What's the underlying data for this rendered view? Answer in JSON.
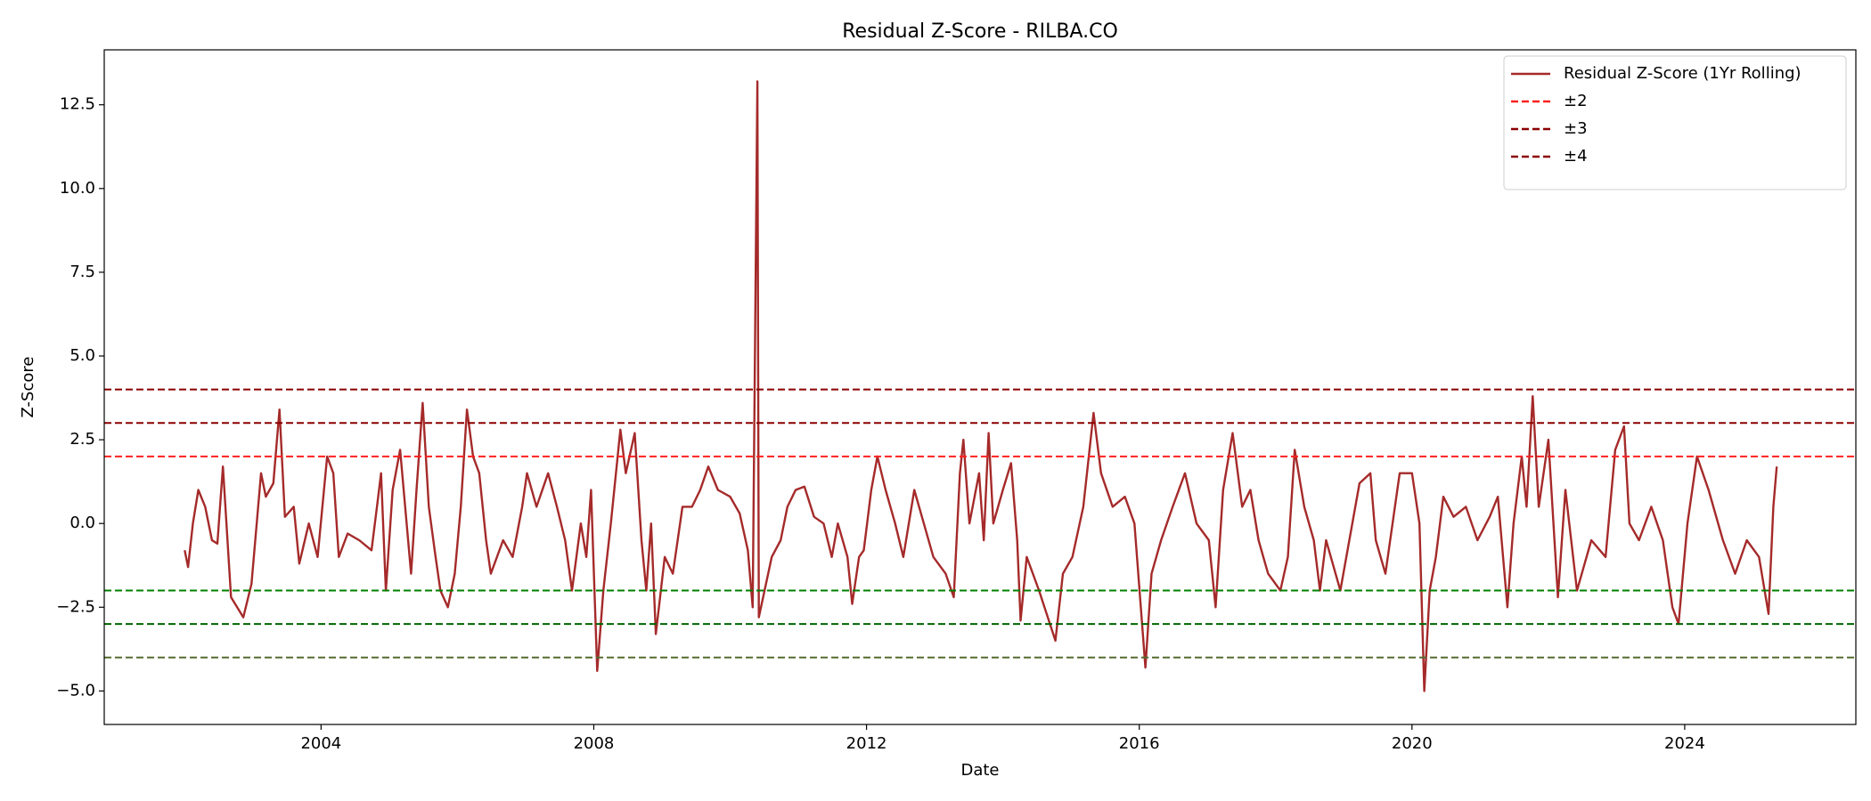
{
  "chart_data": {
    "type": "line",
    "title": "Residual Z-Score - RILBA.CO",
    "x_label": "Date",
    "y_label": "Z-Score",
    "xlim": [
      2000.82,
      2026.51
    ],
    "ylim": [
      -6.0,
      14.14
    ],
    "xticks": [
      2004,
      2008,
      2012,
      2016,
      2020,
      2024
    ],
    "yticks": [
      {
        "value": -5,
        "label": "−5.0"
      },
      {
        "value": -2.5,
        "label": "−2.5"
      },
      {
        "value": 0,
        "label": "0.0"
      },
      {
        "value": 2.5,
        "label": "2.5"
      },
      {
        "value": 5,
        "label": "5.0"
      },
      {
        "value": 7.5,
        "label": "7.5"
      },
      {
        "value": 10,
        "label": "10.0"
      },
      {
        "value": 12.5,
        "label": "12.5"
      }
    ],
    "legend": "upper right",
    "x": [
      2002.0,
      2002.05,
      2002.12,
      2002.2,
      2002.3,
      2002.4,
      2002.48,
      2002.56,
      2002.68,
      2002.86,
      2002.98,
      2003.12,
      2003.19,
      2003.3,
      2003.39,
      2003.47,
      2003.6,
      2003.68,
      2003.82,
      2003.95,
      2004.09,
      2004.18,
      2004.26,
      2004.39,
      2004.56,
      2004.74,
      2004.82,
      2004.88,
      2004.95,
      2005.05,
      2005.16,
      2005.32,
      2005.4,
      2005.49,
      2005.58,
      2005.68,
      2005.75,
      2005.86,
      2005.96,
      2006.05,
      2006.14,
      2006.23,
      2006.32,
      2006.42,
      2006.49,
      2006.67,
      2006.81,
      2006.95,
      2007.02,
      2007.16,
      2007.33,
      2007.46,
      2007.58,
      2007.68,
      2007.81,
      2007.89,
      2007.96,
      2008.05,
      2008.14,
      2008.25,
      2008.39,
      2008.47,
      2008.6,
      2008.7,
      2008.77,
      2008.84,
      2008.91,
      2009.04,
      2009.16,
      2009.3,
      2009.44,
      2009.56,
      2009.68,
      2009.82,
      2010.0,
      2010.14,
      2010.26,
      2010.33,
      2010.4,
      2010.42,
      2010.61,
      2010.74,
      2010.84,
      2010.96,
      2011.09,
      2011.23,
      2011.37,
      2011.49,
      2011.58,
      2011.72,
      2011.79,
      2011.89,
      2011.96,
      2012.07,
      2012.16,
      2012.28,
      2012.42,
      2012.54,
      2012.7,
      2012.84,
      2012.98,
      2013.16,
      2013.28,
      2013.37,
      2013.42,
      2013.51,
      2013.65,
      2013.72,
      2013.79,
      2013.86,
      2014.0,
      2014.12,
      2014.21,
      2014.26,
      2014.35,
      2014.53,
      2014.77,
      2014.88,
      2015.02,
      2015.18,
      2015.33,
      2015.44,
      2015.61,
      2015.79,
      2015.93,
      2016.09,
      2016.18,
      2016.32,
      2016.49,
      2016.67,
      2016.84,
      2017.02,
      2017.12,
      2017.23,
      2017.37,
      2017.51,
      2017.63,
      2017.75,
      2017.89,
      2018.07,
      2018.18,
      2018.28,
      2018.42,
      2018.56,
      2018.65,
      2018.74,
      2018.95,
      2019.23,
      2019.39,
      2019.47,
      2019.61,
      2019.82,
      2020.0,
      2020.11,
      2020.18,
      2020.26,
      2020.35,
      2020.46,
      2020.61,
      2020.79,
      2020.96,
      2021.14,
      2021.26,
      2021.4,
      2021.49,
      2021.61,
      2021.68,
      2021.77,
      2021.86,
      2022.0,
      2022.14,
      2022.25,
      2022.42,
      2022.63,
      2022.84,
      2022.98,
      2023.11,
      2023.19,
      2023.33,
      2023.51,
      2023.68,
      2023.82,
      2023.91,
      2024.04,
      2024.18,
      2024.35,
      2024.56,
      2024.74,
      2024.91,
      2025.09,
      2025.23,
      2025.3,
      2025.35
    ],
    "series": [
      {
        "name": "Residual Z-Score (1Yr Rolling)",
        "color": "#a52a2a",
        "values": [
          -0.8,
          -1.3,
          0.0,
          1.0,
          0.5,
          -0.5,
          -0.6,
          1.7,
          -2.2,
          -2.8,
          -1.8,
          1.5,
          0.8,
          1.2,
          3.4,
          0.2,
          0.5,
          -1.2,
          0.0,
          -1.0,
          2.0,
          1.5,
          -1.0,
          -0.3,
          -0.5,
          -0.8,
          0.5,
          1.5,
          -2.0,
          1.0,
          2.2,
          -1.5,
          1.0,
          3.6,
          0.5,
          -1.0,
          -2.0,
          -2.5,
          -1.5,
          0.5,
          3.4,
          2.0,
          1.5,
          -0.5,
          -1.5,
          -0.5,
          -1.0,
          0.5,
          1.5,
          0.5,
          1.5,
          0.5,
          -0.5,
          -2.0,
          0.0,
          -1.0,
          1.0,
          -4.4,
          -2.0,
          0.0,
          2.8,
          1.5,
          2.7,
          -0.5,
          -2.0,
          0.0,
          -3.3,
          -1.0,
          -1.5,
          0.5,
          0.5,
          1.0,
          1.7,
          1.0,
          0.8,
          0.3,
          -0.8,
          -2.5,
          13.2,
          -2.8,
          -1.0,
          -0.5,
          0.5,
          1.0,
          1.1,
          0.2,
          0.0,
          -1.0,
          0.0,
          -1.0,
          -2.4,
          -1.0,
          -0.8,
          1.0,
          2.0,
          1.0,
          0.0,
          -1.0,
          1.0,
          0.0,
          -1.0,
          -1.5,
          -2.2,
          1.5,
          2.5,
          0.0,
          1.5,
          -0.5,
          2.7,
          0.0,
          1.0,
          1.8,
          -0.5,
          -2.9,
          -1.0,
          -2.0,
          -3.5,
          -1.5,
          -1.0,
          0.5,
          3.3,
          1.5,
          0.5,
          0.8,
          0.0,
          -4.3,
          -1.5,
          -0.5,
          0.5,
          1.5,
          0.0,
          -0.5,
          -2.5,
          1.0,
          2.7,
          0.5,
          1.0,
          -0.5,
          -1.5,
          -2.0,
          -1.0,
          2.2,
          0.5,
          -0.5,
          -2.0,
          -0.5,
          -2.0,
          1.2,
          1.5,
          -0.5,
          -1.5,
          1.5,
          1.5,
          0.0,
          -5.0,
          -2.0,
          -1.0,
          0.8,
          0.2,
          0.5,
          -0.5,
          0.2,
          0.8,
          -2.5,
          0.0,
          2.0,
          0.5,
          3.8,
          0.5,
          2.5,
          -2.2,
          1.0,
          -2.0,
          -0.5,
          -1.0,
          2.2,
          2.9,
          0.0,
          -0.5,
          0.5,
          -0.5,
          -2.5,
          -3.0,
          0.0,
          2.0,
          1.0,
          -0.5,
          -1.5,
          -0.5,
          -1.0,
          -2.7,
          0.5,
          1.7
        ]
      }
    ],
    "hlines": [
      {
        "name": "±2",
        "levels": [
          2,
          -2
        ],
        "colors": [
          "#ff2020",
          "#008000"
        ]
      },
      {
        "name": "±3",
        "levels": [
          3,
          -3
        ],
        "colors": [
          "#8b0000",
          "#006400"
        ]
      },
      {
        "name": "±4",
        "levels": [
          4,
          -4
        ],
        "colors": [
          "#8b0000",
          "#556b2f"
        ]
      }
    ]
  }
}
